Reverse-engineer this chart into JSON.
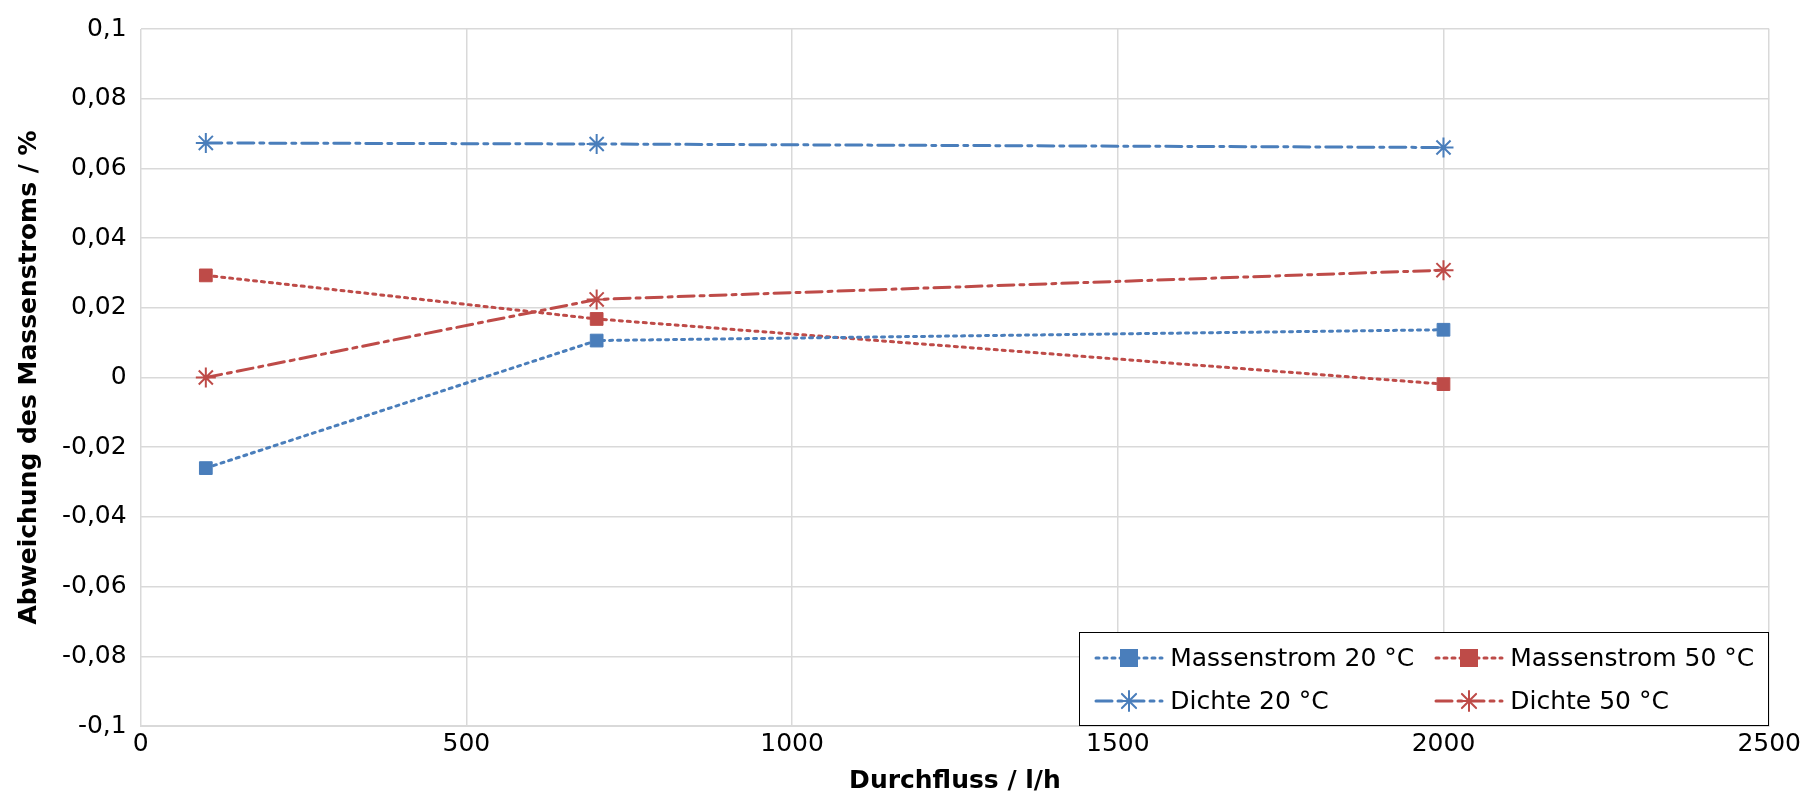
{
  "chart_data": {
    "type": "line",
    "xlabel": "Durchfluss / l/h",
    "ylabel": "Abweichung des Massenstroms / %",
    "x": [
      100,
      700,
      2000
    ],
    "xlim": [
      0,
      2500
    ],
    "xticks": [
      0,
      500,
      1000,
      1500,
      2000,
      2500
    ],
    "ylim": [
      -0.1,
      0.1
    ],
    "yticks": [
      {
        "value": -0.1,
        "label": "-0,1"
      },
      {
        "value": -0.08,
        "label": "-0,08"
      },
      {
        "value": -0.06,
        "label": "-0,06"
      },
      {
        "value": -0.04,
        "label": "-0,04"
      },
      {
        "value": -0.02,
        "label": "-0,02"
      },
      {
        "value": 0,
        "label": "0"
      },
      {
        "value": 0.02,
        "label": "0,02"
      },
      {
        "value": 0.04,
        "label": "0,04"
      },
      {
        "value": 0.06,
        "label": "0,06"
      },
      {
        "value": 0.08,
        "label": "0,08"
      },
      {
        "value": 0.1,
        "label": "0,1"
      }
    ],
    "grid": true,
    "legend": "bottom right",
    "series": [
      {
        "name": "Massenstrom 20 °C",
        "color": "#4a7ebb",
        "values": [
          -0.026,
          0.0106,
          0.0137
        ],
        "marker": "square",
        "line_style": "dotted"
      },
      {
        "name": "Massenstrom 50 °C",
        "color": "#be4b48",
        "values": [
          0.0293,
          0.0168,
          -0.0019
        ],
        "marker": "square",
        "line_style": "dotted"
      },
      {
        "name": "Dichte 20 °C",
        "color": "#4a7ebb",
        "values": [
          0.0673,
          0.067,
          0.066
        ],
        "marker": "cross",
        "line_style": "dashed"
      },
      {
        "name": "Dichte 50 °C",
        "color": "#be4b48",
        "values": [
          0,
          0.0224,
          0.0308
        ],
        "marker": "cross",
        "line_style": "dashed"
      }
    ]
  }
}
